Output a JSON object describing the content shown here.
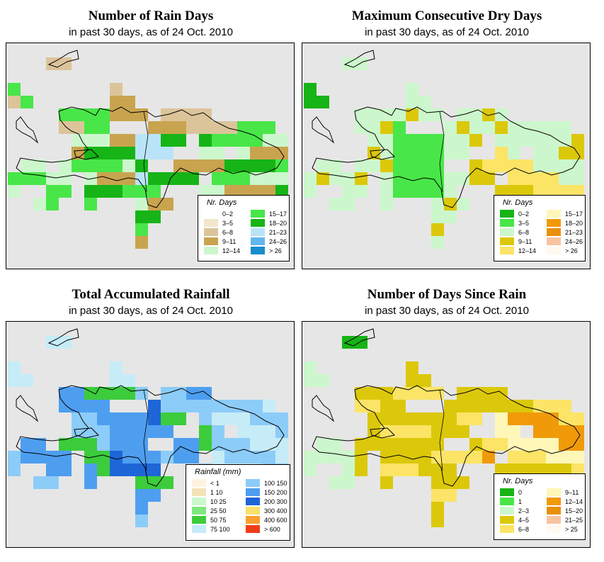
{
  "panels": [
    {
      "id": "rain-days",
      "title": "Number of Rain Days",
      "subtitle": "in past 30 days, as of  24 Oct. 2010",
      "legend": {
        "title": "Nr. Days",
        "items": [
          {
            "label": "0–2",
            "color": "#ffffff"
          },
          {
            "label": "3–5",
            "color": "#f3e6cc"
          },
          {
            "label": "6–8",
            "color": "#dcc49a"
          },
          {
            "label": "9–11",
            "color": "#c9a44f"
          },
          {
            "label": "12–14",
            "color": "#ccf7cc"
          },
          {
            "label": "15–17",
            "color": "#48e648"
          },
          {
            "label": "18–20",
            "color": "#16b416"
          },
          {
            "label": "21–23",
            "color": "#b9e4f7"
          },
          {
            "label": "24–26",
            "color": "#63b6f0"
          },
          {
            "label": "> 26",
            "color": "#1a8ccc"
          }
        ]
      }
    },
    {
      "id": "dry-days",
      "title": "Maximum Consecutive Dry Days",
      "subtitle": "in past 30 days, as of  24 Oct. 2010",
      "legend": {
        "title": "Nr. Days",
        "items": [
          {
            "label": "0–2",
            "color": "#16b416"
          },
          {
            "label": "3–5",
            "color": "#48e648"
          },
          {
            "label": "6–8",
            "color": "#ccf7cc"
          },
          {
            "label": "9–11",
            "color": "#dcc80a"
          },
          {
            "label": "12–14",
            "color": "#fbe466"
          },
          {
            "label": "15–17",
            "color": "#fff7b8"
          },
          {
            "label": "18–20",
            "color": "#f09a0a"
          },
          {
            "label": "21–23",
            "color": "#e8900a"
          },
          {
            "label": "24–26",
            "color": "#f8c4a0"
          },
          {
            "label": "> 26",
            "color": "#fff9ef"
          }
        ]
      }
    },
    {
      "id": "total-rainfall",
      "title": "Total Accumulated Rainfall",
      "subtitle": "in past 30 days, as of  24 Oct. 2010",
      "legend": {
        "title": "Rainfall (mm)",
        "items": [
          {
            "label": "< 1",
            "color": "#fdf3e0"
          },
          {
            "label": "1    10",
            "color": "#f5e2b8"
          },
          {
            "label": "10   25",
            "color": "#ccf7cc"
          },
          {
            "label": "25   50",
            "color": "#7ee87e"
          },
          {
            "label": "50   75",
            "color": "#3ccc3c"
          },
          {
            "label": "75  100",
            "color": "#c6ecf8"
          },
          {
            "label": "100  150",
            "color": "#8cccf8"
          },
          {
            "label": "150  200",
            "color": "#4e9ef0"
          },
          {
            "label": "200  300",
            "color": "#1e66d8"
          },
          {
            "label": "300  400",
            "color": "#f8e06a"
          },
          {
            "label": "400  600",
            "color": "#f8a030"
          },
          {
            "label": "> 600",
            "color": "#f03c1a"
          }
        ]
      }
    },
    {
      "id": "days-since-rain",
      "title": "Number of Days Since Rain",
      "subtitle": "in past 30 days, as of  24 Oct. 2010",
      "legend": {
        "title": "Nr. Days",
        "items": [
          {
            "label": "0",
            "color": "#16b416"
          },
          {
            "label": "1",
            "color": "#48e648"
          },
          {
            "label": "2–3",
            "color": "#ccf7cc"
          },
          {
            "label": "4–5",
            "color": "#dcc80a"
          },
          {
            "label": "6–8",
            "color": "#fbe466"
          },
          {
            "label": "9–11",
            "color": "#fff7b8"
          },
          {
            "label": "12–14",
            "color": "#f09a0a"
          },
          {
            "label": "15–20",
            "color": "#e8900a"
          },
          {
            "label": "21–25",
            "color": "#f8c4a0"
          },
          {
            "label": "> 25",
            "color": "#fff9ef"
          }
        ]
      }
    }
  ]
}
